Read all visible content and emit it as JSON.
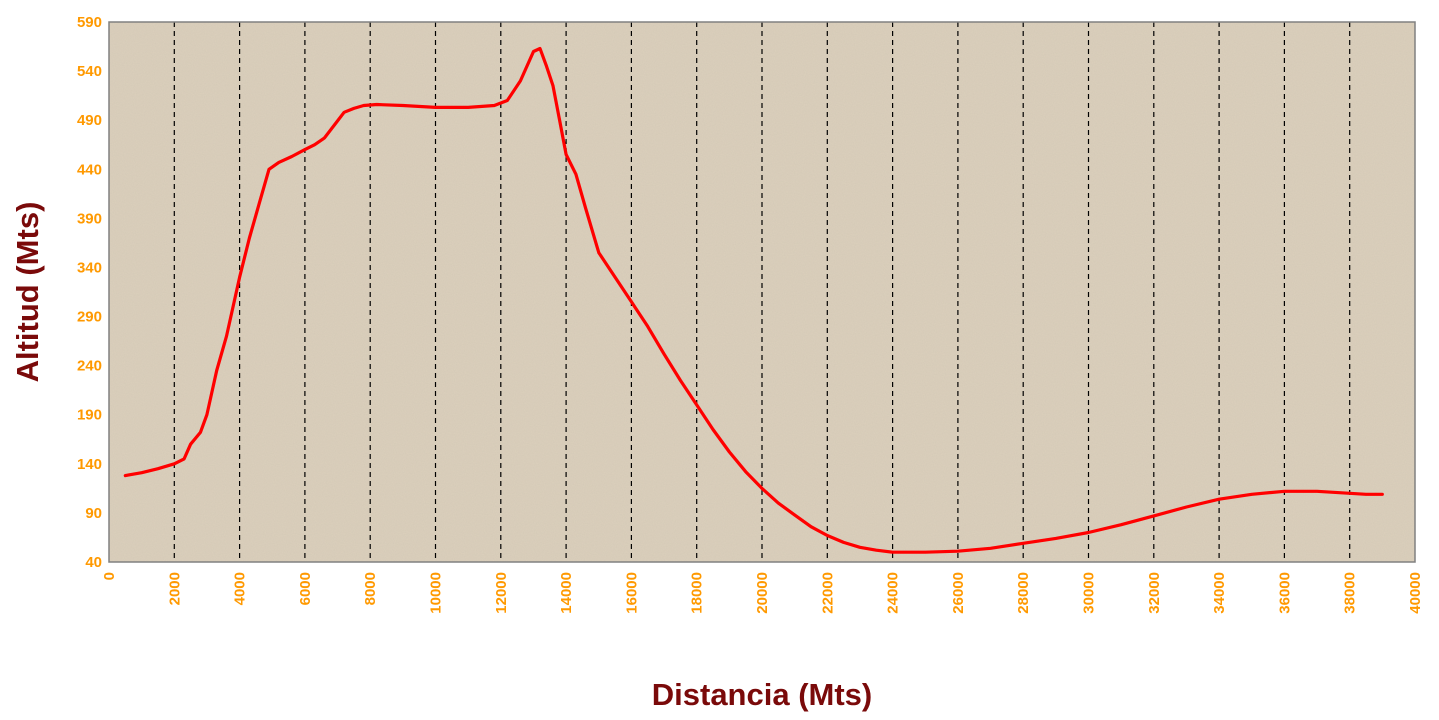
{
  "chart_data": {
    "type": "line",
    "title": "",
    "xlabel": "Distancia (Mts)",
    "ylabel": "Altitud (Mts)",
    "xlim": [
      0,
      40000
    ],
    "ylim": [
      40,
      590
    ],
    "x_ticks": [
      0,
      2000,
      4000,
      6000,
      8000,
      10000,
      12000,
      14000,
      16000,
      18000,
      20000,
      22000,
      24000,
      26000,
      28000,
      30000,
      32000,
      34000,
      36000,
      38000,
      40000
    ],
    "x_tick_labels": [
      "0",
      "2000",
      "4000",
      "6000",
      "8000",
      "10000",
      "12000",
      "14000",
      "16000",
      "18000",
      "20000",
      "22000",
      "24000",
      "26000",
      "28000",
      "30000",
      "32000",
      "34000",
      "36000",
      "38000",
      "40000"
    ],
    "y_ticks": [
      40,
      90,
      140,
      190,
      240,
      290,
      340,
      390,
      440,
      490,
      540,
      590
    ],
    "y_tick_labels": [
      "40",
      "90",
      "140",
      "190",
      "240",
      "290",
      "340",
      "390",
      "440",
      "490",
      "540",
      "590"
    ],
    "grid": {
      "vertical": true,
      "horizontal": false,
      "style": "dashed"
    },
    "legend": "none",
    "colors": {
      "line": "#ff0000",
      "plot_background": "#dcd0bc",
      "tick_labels": "#ff9900",
      "axis_titles": "#7a0a0a",
      "grid": "#000000"
    },
    "series": [
      {
        "x": [
          500,
          1000,
          1500,
          2000,
          2300,
          2500,
          2800,
          3000,
          3300,
          3600,
          4000,
          4300,
          4600,
          4900,
          5200,
          5600,
          6000,
          6300,
          6600,
          6900,
          7200,
          7500,
          7800,
          8200,
          9000,
          10000,
          11000,
          11800,
          12200,
          12600,
          13000,
          13200,
          13400,
          13600,
          13800,
          14000,
          14300,
          14600,
          15000,
          15500,
          16000,
          16500,
          17000,
          17500,
          18000,
          18500,
          19000,
          19500,
          20000,
          20500,
          21000,
          21500,
          22000,
          22500,
          23000,
          23500,
          24000,
          25000,
          26000,
          27000,
          28000,
          29000,
          30000,
          31000,
          32000,
          33000,
          34000,
          35000,
          36000,
          37000,
          38000,
          38500,
          39000
        ],
        "values": [
          128,
          131,
          135,
          140,
          145,
          160,
          172,
          190,
          235,
          270,
          330,
          370,
          405,
          440,
          447,
          453,
          460,
          465,
          472,
          485,
          498,
          502,
          505,
          506,
          505,
          503,
          503,
          505,
          510,
          530,
          560,
          563,
          545,
          525,
          490,
          455,
          435,
          400,
          355,
          330,
          305,
          280,
          252,
          225,
          200,
          175,
          152,
          132,
          115,
          100,
          88,
          76,
          67,
          60,
          55,
          52,
          50,
          50,
          51,
          54,
          59,
          64,
          70,
          78,
          87,
          96,
          104,
          109,
          112,
          112,
          110,
          109,
          109
        ]
      }
    ]
  }
}
